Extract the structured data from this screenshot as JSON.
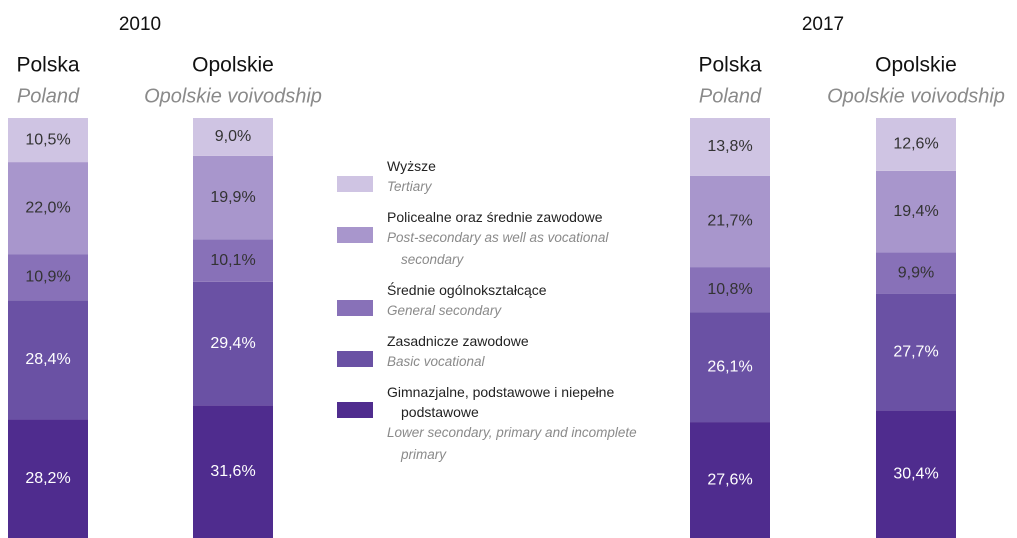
{
  "chart_data": {
    "type": "bar",
    "stacked": true,
    "groups": [
      "2010",
      "2017"
    ],
    "categories": [
      "Polska",
      "Opolskie",
      "Polska",
      "Opolskie"
    ],
    "categories_en": [
      "Poland",
      "Opolskie voivodship",
      "Poland",
      "Opolskie voivodship"
    ],
    "ylim": [
      0,
      100
    ],
    "series": [
      {
        "name": "Wyższe",
        "name_en": "Tertiary",
        "color": "#cfc4e3",
        "values": [
          10.5,
          9.0,
          13.8,
          12.6
        ],
        "value_labels": [
          "10,5%",
          "9,0%",
          "13,8%",
          "12,6%"
        ]
      },
      {
        "name": "Policealne oraz średnie zawodowe",
        "name_en": "Post-secondary as well as vocational secondary",
        "color": "#a896cc",
        "values": [
          22.0,
          19.9,
          21.7,
          19.4
        ],
        "value_labels": [
          "22,0%",
          "19,9%",
          "21,7%",
          "19,4%"
        ]
      },
      {
        "name": "Średnie ogólnokształcące",
        "name_en": "General secondary",
        "color": "#8871b8",
        "values": [
          10.9,
          10.1,
          10.8,
          9.9
        ],
        "value_labels": [
          "10,9%",
          "10,1%",
          "10,8%",
          "9,9%"
        ]
      },
      {
        "name": "Zasadnicze zawodowe",
        "name_en": "Basic vocational",
        "color": "#6a51a4",
        "values": [
          28.4,
          29.4,
          26.1,
          27.7
        ],
        "value_labels": [
          "28,4%",
          "29,4%",
          "26,1%",
          "27,7%"
        ]
      },
      {
        "name": "Gimnazjalne, podstawowe  i niepełne podstawowe",
        "name_en": "Lower secondary, primary and incomplete primary",
        "color": "#4f2c8e",
        "values": [
          28.2,
          31.6,
          27.6,
          30.4
        ],
        "value_labels": [
          "28,2%",
          "31,6%",
          "27,6%",
          "30,4%"
        ]
      }
    ]
  }
}
